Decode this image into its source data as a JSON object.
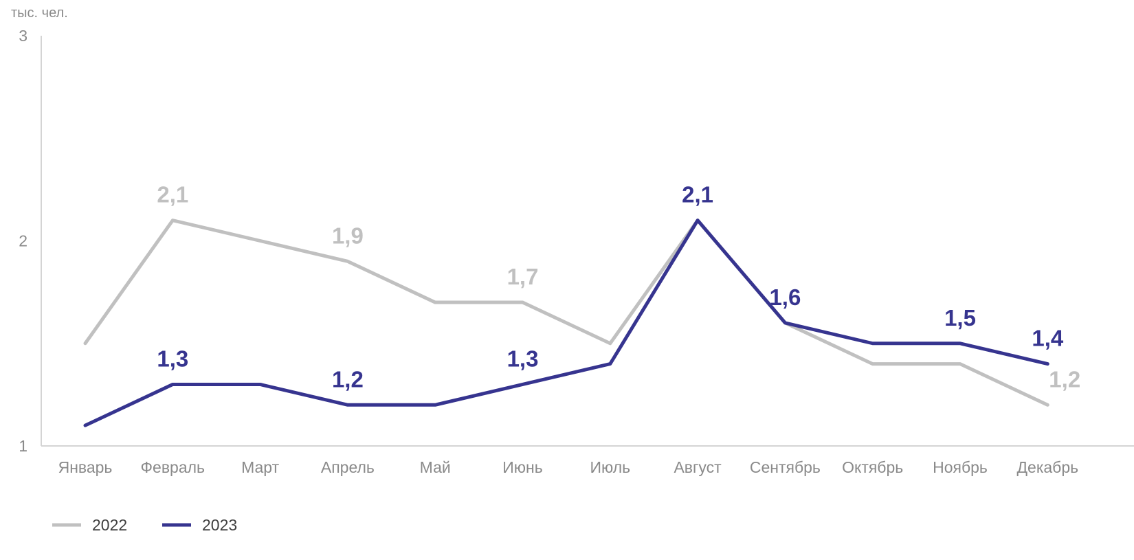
{
  "chart_data": {
    "type": "line",
    "unit_label": "тыс. чел.",
    "categories": [
      "Январь",
      "Февраль",
      "Март",
      "Апрель",
      "Май",
      "Июнь",
      "Июль",
      "Август",
      "Сентябрь",
      "Октябрь",
      "Ноябрь",
      "Декабрь"
    ],
    "ylim": [
      1,
      3
    ],
    "yticks": [
      "1",
      "2",
      "3"
    ],
    "grid": false,
    "legend_position": "bottom-left",
    "series": [
      {
        "name": "2022",
        "color": "#c0c0c0",
        "values": [
          1.5,
          2.1,
          2.0,
          1.9,
          1.7,
          1.7,
          1.5,
          2.1,
          1.6,
          1.4,
          1.4,
          1.2
        ],
        "labels": [
          "",
          "2,1",
          "",
          "1,9",
          "",
          "1,7",
          "",
          "",
          "",
          "",
          "",
          "1,2"
        ]
      },
      {
        "name": "2023",
        "color": "#36348f",
        "values": [
          1.1,
          1.3,
          1.3,
          1.2,
          1.2,
          1.3,
          1.4,
          2.1,
          1.6,
          1.5,
          1.5,
          1.4
        ],
        "labels": [
          "",
          "1,3",
          "",
          "1,2",
          "",
          "1,3",
          "",
          "2,1",
          "1,6",
          "",
          "1,5",
          "1,4"
        ]
      }
    ],
    "axis_color": "#d4d4d4"
  }
}
